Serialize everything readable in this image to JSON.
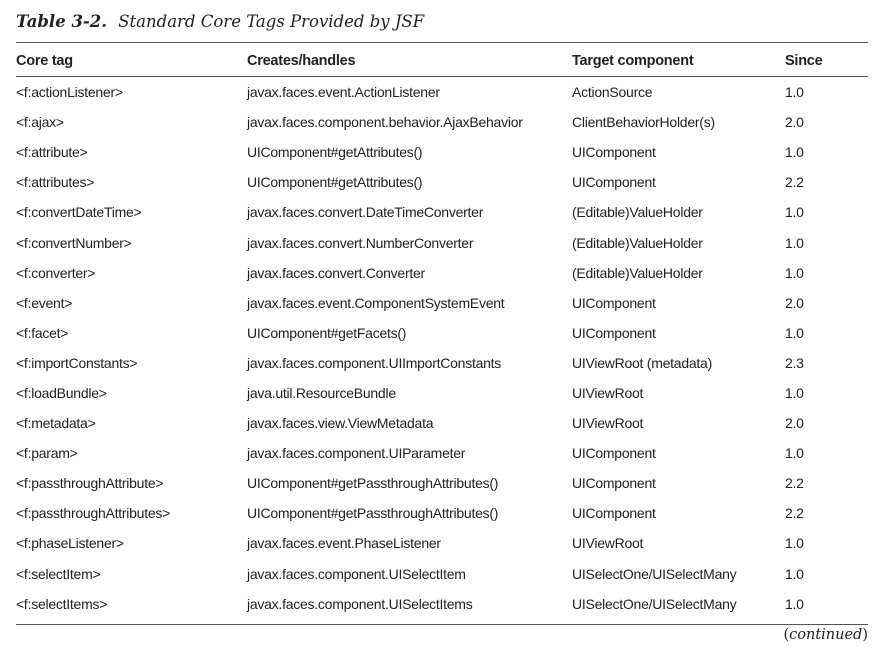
{
  "caption": {
    "number": "Table 3-2.",
    "title": "Standard Core Tags Provided by JSF"
  },
  "table": {
    "headers": [
      "Core tag",
      "Creates/handles",
      "Target component",
      "Since"
    ],
    "rows": [
      [
        "<f:actionListener>",
        "javax.faces.event.ActionListener",
        "ActionSource",
        "1.0"
      ],
      [
        "<f:ajax>",
        "javax.faces.component.behavior.AjaxBehavior",
        "ClientBehaviorHolder(s)",
        "2.0"
      ],
      [
        "<f:attribute>",
        "UIComponent#getAttributes()",
        "UIComponent",
        "1.0"
      ],
      [
        "<f:attributes>",
        "UIComponent#getAttributes()",
        "UIComponent",
        "2.2"
      ],
      [
        "<f:convertDateTime>",
        "javax.faces.convert.DateTimeConverter",
        "(Editable)ValueHolder",
        "1.0"
      ],
      [
        "<f:convertNumber>",
        "javax.faces.convert.NumberConverter",
        "(Editable)ValueHolder",
        "1.0"
      ],
      [
        "<f:converter>",
        "javax.faces.convert.Converter",
        "(Editable)ValueHolder",
        "1.0"
      ],
      [
        "<f:event>",
        "javax.faces.event.ComponentSystemEvent",
        "UIComponent",
        "2.0"
      ],
      [
        "<f:facet>",
        "UIComponent#getFacets()",
        "UIComponent",
        "1.0"
      ],
      [
        "<f:importConstants>",
        "javax.faces.component.UIImportConstants",
        "UIViewRoot (metadata)",
        "2.3"
      ],
      [
        "<f:loadBundle>",
        "java.util.ResourceBundle",
        "UIViewRoot",
        "1.0"
      ],
      [
        "<f:metadata>",
        "javax.faces.view.ViewMetadata",
        "UIViewRoot",
        "2.0"
      ],
      [
        "<f:param>",
        "javax.faces.component.UIParameter",
        "UIComponent",
        "1.0"
      ],
      [
        "<f:passthroughAttribute>",
        "UIComponent#getPassthroughAttributes()",
        "UIComponent",
        "2.2"
      ],
      [
        "<f:passthroughAttributes>",
        "UIComponent#getPassthroughAttributes()",
        "UIComponent",
        "2.2"
      ],
      [
        "<f:phaseListener>",
        "javax.faces.event.PhaseListener",
        "UIViewRoot",
        "1.0"
      ],
      [
        "<f:selectItem>",
        "javax.faces.component.UISelectItem",
        "UISelectOne/UISelectMany",
        "1.0"
      ],
      [
        "<f:selectItems>",
        "javax.faces.component.UISelectItems",
        "UISelectOne/UISelectMany",
        "1.0"
      ]
    ]
  },
  "footer": {
    "continued": "continued"
  }
}
